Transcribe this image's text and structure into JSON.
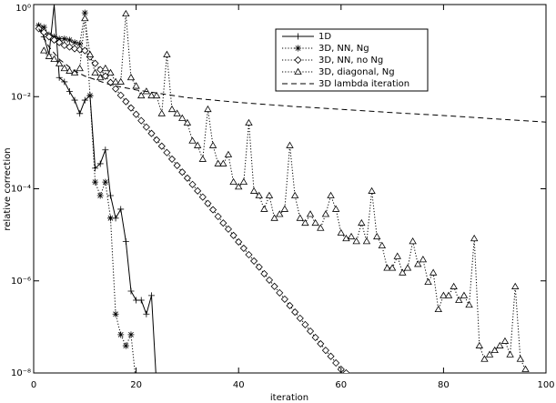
{
  "chart_data": {
    "type": "line",
    "xlabel": "iteration",
    "ylabel": "relative correction",
    "xlim": [
      0,
      100
    ],
    "xticks": [
      0,
      20,
      40,
      60,
      80,
      100
    ],
    "ylim": [
      1e-08,
      1
    ],
    "yscale": "log",
    "yticks": [
      {
        "value": 1e-08,
        "label": "10⁻⁸"
      },
      {
        "value": 1e-06,
        "label": "10⁻⁶"
      },
      {
        "value": 0.0001,
        "label": "10⁻⁴"
      },
      {
        "value": 0.01,
        "label": "10⁻²"
      },
      {
        "value": 1,
        "label": "10⁰"
      }
    ],
    "legend": "upper center",
    "series": [
      {
        "name": "1D",
        "color": "#000000",
        "linestyle": "solid",
        "marker": "plus",
        "x": [
          1,
          2,
          3,
          4,
          5,
          6,
          7,
          8,
          9,
          10,
          11,
          12,
          13,
          14,
          15,
          16,
          17,
          18,
          19,
          20,
          21,
          22,
          23,
          24
        ],
        "values": [
          0.35,
          0.2,
          0.082,
          1.0,
          0.026,
          0.021,
          0.013,
          0.0084,
          0.0043,
          0.0084,
          0.0105,
          0.00028,
          0.00035,
          0.0007,
          7.1e-05,
          2.3e-05,
          3.6e-05,
          7.2e-06,
          6e-07,
          3.8e-07,
          3.8e-07,
          1.9e-07,
          4.8e-07,
          5e-09
        ]
      },
      {
        "name": "3D, NN, Ng",
        "color": "#000000",
        "linestyle": "dotted",
        "marker": "asterisk",
        "x": [
          1,
          2,
          3,
          4,
          5,
          6,
          7,
          8,
          9,
          10,
          11,
          12,
          13,
          14,
          15,
          16,
          17,
          18,
          19,
          20
        ],
        "values": [
          0.35,
          0.32,
          0.22,
          0.2,
          0.18,
          0.18,
          0.17,
          0.15,
          0.14,
          0.66,
          0.0105,
          0.00014,
          7.1e-05,
          0.00014,
          2.3e-05,
          1.9e-07,
          6.8e-08,
          3.9e-08,
          6.8e-08,
          6e-09
        ]
      },
      {
        "name": "3D, NN, no Ng",
        "color": "#000000",
        "linestyle": "dotted",
        "marker": "diamond",
        "x": [
          1,
          2,
          3,
          4,
          5,
          6,
          7,
          8,
          9,
          10,
          11,
          12,
          13,
          14,
          15,
          16,
          17,
          18,
          19,
          20,
          21,
          22,
          23,
          24,
          25,
          26,
          27,
          28,
          29,
          30,
          31,
          32,
          33,
          34,
          35,
          36,
          37,
          38,
          39,
          40,
          41,
          42,
          43,
          44,
          45,
          46,
          47,
          48,
          49,
          50,
          51,
          52,
          53,
          54,
          55,
          56,
          57,
          58,
          59,
          60,
          61
        ],
        "values": [
          0.3,
          0.25,
          0.2,
          0.17,
          0.15,
          0.13,
          0.12,
          0.11,
          0.105,
          0.1,
          0.0728,
          0.0528,
          0.0385,
          0.0279,
          0.0203,
          0.0148,
          0.0107,
          0.00782,
          0.00568,
          0.00413,
          0.00301,
          0.00218,
          0.00159,
          0.00115,
          0.00084,
          0.00061,
          0.00044,
          0.00032,
          0.00023,
          0.00017,
          0.000124,
          9e-05,
          6.6e-05,
          4.8e-05,
          3.5e-05,
          2.5e-05,
          1.8e-05,
          1.33e-05,
          9.7e-06,
          7e-06,
          5.1e-06,
          3.7e-06,
          2.7e-06,
          2e-06,
          1.43e-06,
          1.04e-06,
          7.6e-07,
          5.5e-07,
          4e-07,
          2.9e-07,
          2.1e-07,
          1.54e-07,
          1.12e-07,
          8.1e-08,
          5.9e-08,
          4.3e-08,
          3.1e-08,
          2.3e-08,
          1.65e-08,
          1.2e-08,
          1e-08
        ]
      },
      {
        "name": "3D, diagonal, Ng",
        "color": "#000000",
        "linestyle": "dotted",
        "marker": "triangle",
        "x": [
          2,
          3,
          4,
          5,
          6,
          7,
          8,
          9,
          10,
          11,
          12,
          13,
          14,
          15,
          16,
          17,
          18,
          19,
          20,
          21,
          22,
          23,
          24,
          25,
          26,
          27,
          28,
          29,
          30,
          31,
          32,
          33,
          34,
          35,
          36,
          37,
          38,
          39,
          40,
          41,
          42,
          43,
          44,
          45,
          46,
          47,
          48,
          49,
          50,
          51,
          52,
          53,
          54,
          55,
          56,
          57,
          58,
          59,
          60,
          61,
          62,
          63,
          64,
          65,
          66,
          67,
          68,
          69,
          70,
          71,
          72,
          73,
          74,
          75,
          76,
          77,
          78,
          79,
          80,
          81,
          82,
          83,
          84,
          85,
          86,
          87,
          88,
          89,
          90,
          91,
          92,
          93,
          94,
          95,
          96
        ],
        "values": [
          0.1,
          0.075,
          0.065,
          0.052,
          0.041,
          0.036,
          0.033,
          0.041,
          0.5,
          0.082,
          0.033,
          0.026,
          0.041,
          0.033,
          0.021,
          0.021,
          0.63,
          0.026,
          0.017,
          0.0105,
          0.013,
          0.0105,
          0.0105,
          0.0043,
          0.082,
          0.0053,
          0.0043,
          0.0034,
          0.0027,
          0.0011,
          0.00087,
          0.00044,
          0.0053,
          0.00087,
          0.00035,
          0.00035,
          0.00055,
          0.00014,
          0.00011,
          0.00014,
          0.0027,
          8.9e-05,
          7.1e-05,
          3.6e-05,
          7.1e-05,
          2.3e-05,
          2.8e-05,
          3.6e-05,
          0.00087,
          7.1e-05,
          2.3e-05,
          1.8e-05,
          2.8e-05,
          1.8e-05,
          1.4e-05,
          2.8e-05,
          7.1e-05,
          3.6e-05,
          1.1e-05,
          8.3e-06,
          9.1e-06,
          7.2e-06,
          1.8e-05,
          7.2e-06,
          8.9e-05,
          9.1e-06,
          5.8e-06,
          1.9e-06,
          1.9e-06,
          3.4e-06,
          1.5e-06,
          1.9e-06,
          7.2e-06,
          2.3e-06,
          2.9e-06,
          9.4e-07,
          1.5e-06,
          2.4e-07,
          4.8e-07,
          4.8e-07,
          7.5e-07,
          3.8e-07,
          4.8e-07,
          3e-07,
          8.3e-06,
          3.9e-08,
          2e-08,
          2.5e-08,
          3.1e-08,
          3.9e-08,
          4.9e-08,
          2.5e-08,
          7.5e-07,
          2e-08,
          1.2e-08
        ]
      },
      {
        "name": "3D lambda iteration",
        "color": "#000000",
        "linestyle": "dashed",
        "marker": "none",
        "x": [
          1,
          3,
          5,
          8,
          10,
          15,
          20,
          30,
          40,
          50,
          60,
          70,
          80,
          90,
          100
        ],
        "values": [
          0.3,
          0.12,
          0.065,
          0.036,
          0.028,
          0.018,
          0.014,
          0.0095,
          0.0075,
          0.0062,
          0.0053,
          0.0045,
          0.0039,
          0.0033,
          0.0028
        ]
      }
    ]
  }
}
